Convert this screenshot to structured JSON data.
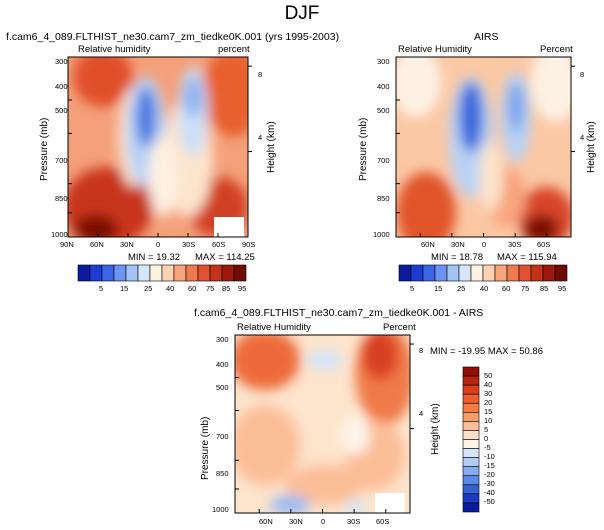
{
  "title": "DJF",
  "chart_data": [
    {
      "type": "contour",
      "title": "f.cam6_4_089.FLTHIST_ne30.cam7_zm_tiedke0K.001 (yrs 1995-2003)",
      "left_string": "Relative humidity",
      "right_string": "percent",
      "ylabel": "Pressure (mb)",
      "ylabel_right": "Height (km)",
      "x_ticks": [
        "90N",
        "60N",
        "30N",
        "0",
        "30S",
        "60S",
        "90S"
      ],
      "x_tick_values": [
        90,
        60,
        30,
        0,
        -30,
        -60,
        -90
      ],
      "xlim": [
        90,
        -90
      ],
      "y_ticks": [
        "300",
        "400",
        "500",
        "700",
        "850",
        "1000"
      ],
      "y_tick_values": [
        300,
        400,
        500,
        700,
        850,
        1000
      ],
      "ylim": [
        300,
        1000
      ],
      "height_ticks": [
        "8",
        "4"
      ],
      "height_tick_values": [
        8,
        4
      ],
      "min_label": "MIN = 19.32",
      "max_label": "MAX = 114.25",
      "min": 19.32,
      "max": 114.25
    },
    {
      "type": "contour",
      "title": "AIRS",
      "left_string": "Relative Humidity",
      "right_string": "Percent",
      "ylabel": "Pressure (mb)",
      "ylabel_right": "Height (km)",
      "x_ticks": [
        "60N",
        "30N",
        "0",
        "30S",
        "60S"
      ],
      "x_tick_values": [
        60,
        30,
        0,
        -30,
        -60
      ],
      "xlim": [
        83,
        -83
      ],
      "y_ticks": [
        "300",
        "400",
        "500",
        "700",
        "850",
        "1000"
      ],
      "y_tick_values": [
        300,
        400,
        500,
        700,
        850,
        1000
      ],
      "ylim": [
        300,
        1000
      ],
      "height_ticks": [
        "8",
        "4"
      ],
      "height_tick_values": [
        8,
        4
      ],
      "min_label": "MIN = 18.78",
      "max_label": "MAX = 115.94",
      "min": 18.78,
      "max": 115.94
    },
    {
      "type": "contour",
      "title": "f.cam6_4_089.FLTHIST_ne30.cam7_zm_tiedke0K.001 - AIRS",
      "left_string": "Relative Humidity",
      "right_string": "Percent",
      "ylabel": "Pressure (mb)",
      "ylabel_right": "Height (km)",
      "x_ticks": [
        "60N",
        "30N",
        "0",
        "30S",
        "60S"
      ],
      "x_tick_values": [
        60,
        30,
        0,
        -30,
        -60
      ],
      "xlim": [
        83,
        -83
      ],
      "y_ticks": [
        "300",
        "400",
        "500",
        "700",
        "850",
        "1000"
      ],
      "y_tick_values": [
        300,
        400,
        500,
        700,
        850,
        1000
      ],
      "ylim": [
        300,
        1000
      ],
      "height_ticks": [
        "8",
        "4"
      ],
      "height_tick_values": [
        8,
        4
      ],
      "stats_label": "MIN = -19.95   MAX = 50.86",
      "min": -19.95,
      "max": 50.86
    }
  ],
  "colorbar_rh": {
    "labels": [
      "5",
      "15",
      "25",
      "40",
      "60",
      "75",
      "85",
      "95"
    ],
    "colors": [
      "#0a1c9c",
      "#1c3cd4",
      "#3c64e6",
      "#6c94f0",
      "#a4c4f8",
      "#d6e6fa",
      "#fef2e0",
      "#fcd2b2",
      "#f8a47c",
      "#f07a50",
      "#e05230",
      "#c23418",
      "#9c1a0c",
      "#6e0c04"
    ]
  },
  "colorbar_diff": {
    "labels": [
      "50",
      "40",
      "30",
      "20",
      "15",
      "10",
      "5",
      "0",
      "-5",
      "-10",
      "-15",
      "-20",
      "-30",
      "-40",
      "-50"
    ],
    "colors": [
      "#8e1006",
      "#b8240e",
      "#d8401c",
      "#ec5e2c",
      "#f47c44",
      "#f89c68",
      "#fbbe98",
      "#fde0c8",
      "#fef4e8",
      "#d6e6fa",
      "#b0ccf4",
      "#86acee",
      "#5a88e4",
      "#3462d6",
      "#1c3cc0",
      "#0c1c98"
    ]
  }
}
